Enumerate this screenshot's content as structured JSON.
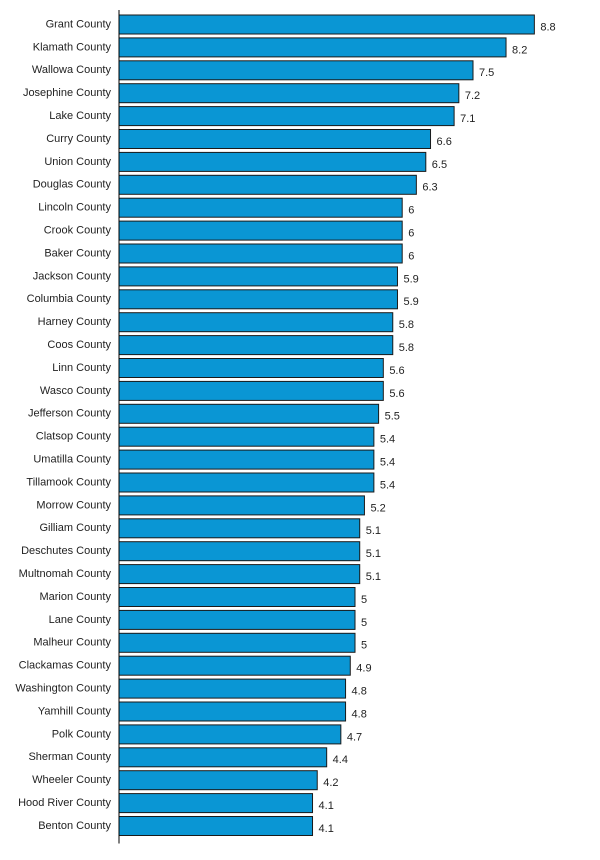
{
  "chart_data": {
    "type": "bar",
    "orientation": "horizontal",
    "title": "",
    "xlabel": "",
    "ylabel": "",
    "xlim": [
      0,
      8.8
    ],
    "grid": false,
    "legend": "none",
    "bar_color": "#0A96D4",
    "bar_edge_color": "#1a1a1a",
    "categories": [
      "Grant County",
      "Klamath County",
      "Wallowa County",
      "Josephine County",
      "Lake County",
      "Curry County",
      "Union County",
      "Douglas County",
      "Lincoln County",
      "Crook County",
      "Baker County",
      "Jackson County",
      "Columbia County",
      "Harney County",
      "Coos County",
      "Linn County",
      "Wasco County",
      "Jefferson County",
      "Clatsop County",
      "Umatilla County",
      "Tillamook County",
      "Morrow County",
      "Gilliam County",
      "Deschutes County",
      "Multnomah County",
      "Marion County",
      "Lane County",
      "Malheur County",
      "Clackamas County",
      "Washington County",
      "Yamhill County",
      "Polk County",
      "Sherman County",
      "Wheeler County",
      "Hood River County",
      "Benton County"
    ],
    "values": [
      8.8,
      8.2,
      7.5,
      7.2,
      7.1,
      6.6,
      6.5,
      6.3,
      6,
      6,
      6,
      5.9,
      5.9,
      5.8,
      5.8,
      5.6,
      5.6,
      5.5,
      5.4,
      5.4,
      5.4,
      5.2,
      5.1,
      5.1,
      5.1,
      5,
      5,
      5,
      4.9,
      4.8,
      4.8,
      4.7,
      4.4,
      4.2,
      4.1,
      4.1
    ],
    "value_labels": [
      "8.8",
      "8.2",
      "7.5",
      "7.2",
      "7.1",
      "6.6",
      "6.5",
      "6.3",
      "6",
      "6",
      "6",
      "5.9",
      "5.9",
      "5.8",
      "5.8",
      "5.6",
      "5.6",
      "5.5",
      "5.4",
      "5.4",
      "5.4",
      "5.2",
      "5.1",
      "5.1",
      "5.1",
      "5",
      "5",
      "5",
      "4.9",
      "4.8",
      "4.8",
      "4.7",
      "4.4",
      "4.2",
      "4.1",
      "4.1"
    ]
  }
}
